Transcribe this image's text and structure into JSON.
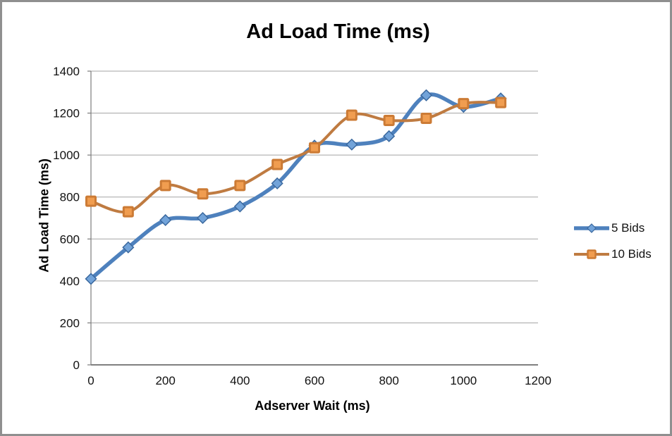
{
  "title": "Ad Load Time (ms)",
  "frame": {
    "background": "#ffffff",
    "border_color": "#8f8f8f"
  },
  "axes": {
    "grid_color": "#a3a3a3",
    "axis_color": "#808080",
    "tick_label_color": "#111111"
  },
  "chart_data": {
    "type": "line",
    "title": "Ad Load Time (ms)",
    "xlabel": "Adserver Wait (ms)",
    "ylabel": "Ad Load Time (ms)",
    "xlim": [
      0,
      1200
    ],
    "ylim": [
      0,
      1400
    ],
    "x_ticks": [
      0,
      200,
      400,
      600,
      800,
      1000,
      1200
    ],
    "y_ticks": [
      0,
      200,
      400,
      600,
      800,
      1000,
      1200,
      1400
    ],
    "grid": "horizontal-only",
    "legend_position": "right-middle",
    "smooth_lines": true,
    "x": [
      0,
      100,
      200,
      300,
      400,
      500,
      600,
      700,
      800,
      900,
      1000,
      1100
    ],
    "series": [
      {
        "name": "5 Bids",
        "marker": "diamond",
        "line_color": "#4e81bd",
        "line_width": 5.5,
        "marker_fill": "#72a3d9",
        "marker_stroke": "#3a689e",
        "values": [
          410,
          560,
          690,
          700,
          755,
          865,
          1045,
          1050,
          1090,
          1285,
          1230,
          1270
        ]
      },
      {
        "name": "10 Bids",
        "marker": "square",
        "line_color": "#bf7b41",
        "line_width": 4,
        "marker_fill": "#f09d50",
        "marker_stroke": "#cc7b35",
        "values": [
          780,
          730,
          855,
          815,
          855,
          955,
          1035,
          1190,
          1165,
          1175,
          1245,
          1250
        ]
      }
    ]
  }
}
